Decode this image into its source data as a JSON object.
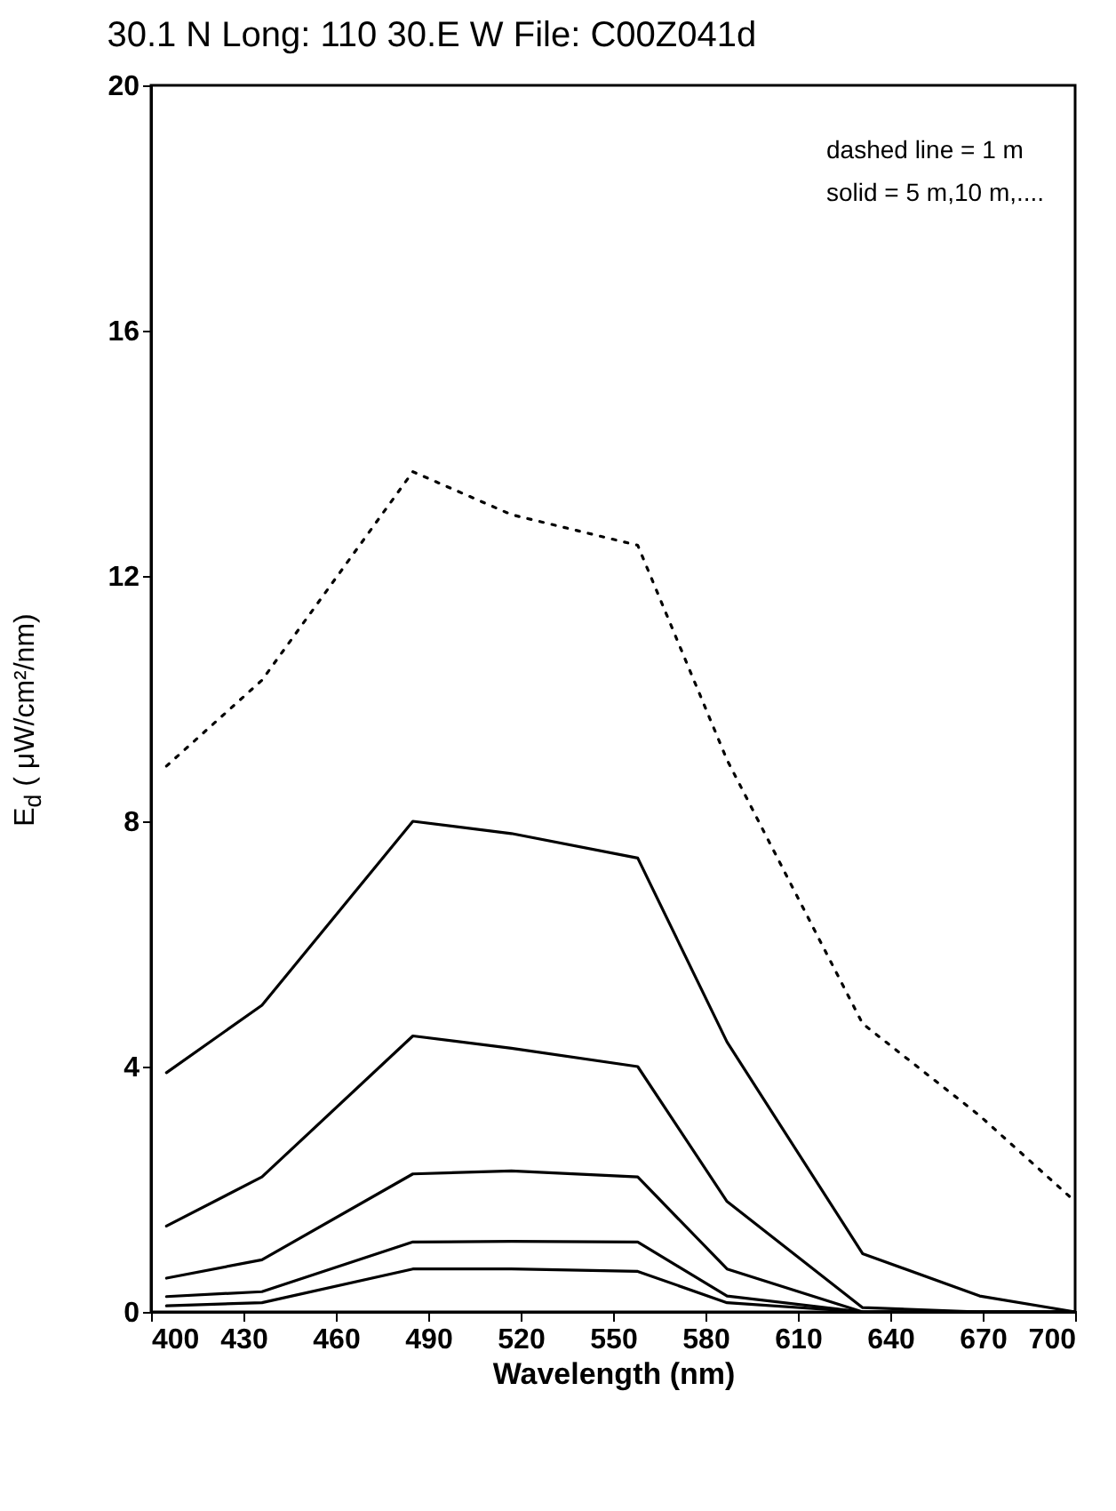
{
  "chart_data": {
    "type": "line",
    "title": "30.1 N Long: 110 30.E W File: C00Z041d",
    "xlabel": "Wavelength (nm)",
    "ylabel": "E$_{d}$ ( μW/cm²/nm)",
    "x": [
      405,
      436,
      485,
      517,
      558,
      587,
      631,
      669,
      700
    ],
    "series": [
      {
        "color": "#000000",
        "line_style": "dotted",
        "values": [
          8.9,
          10.3,
          13.7,
          13.0,
          12.5,
          9.0,
          4.7,
          3.2,
          1.8
        ]
      },
      {
        "color": "#000000",
        "line_style": "solid",
        "values": [
          3.9,
          5.0,
          8.0,
          7.8,
          7.4,
          4.4,
          0.95,
          0.26,
          0
        ]
      },
      {
        "color": "#000000",
        "line_style": "solid",
        "values": [
          1.4,
          2.2,
          4.5,
          4.3,
          4.0,
          1.8,
          0.07,
          0,
          0
        ]
      },
      {
        "color": "#000000",
        "line_style": "solid",
        "values": [
          0.55,
          0.85,
          2.25,
          2.3,
          2.2,
          0.7,
          0,
          0,
          0
        ]
      },
      {
        "color": "#000000",
        "line_style": "solid",
        "values": [
          0.25,
          0.33,
          1.14,
          1.15,
          1.14,
          0.26,
          0,
          0,
          0
        ]
      },
      {
        "color": "#000000",
        "line_style": "solid",
        "values": [
          0.1,
          0.15,
          0.7,
          0.7,
          0.66,
          0.15,
          0,
          0,
          0
        ]
      }
    ],
    "xlim": [
      400,
      700
    ],
    "xticks": [
      400,
      430,
      460,
      490,
      520,
      550,
      580,
      610,
      640,
      670,
      700
    ],
    "ylim": [
      0,
      20
    ],
    "yticks": [
      0,
      4,
      8,
      12,
      16,
      20
    ],
    "grid": false,
    "annotations": [
      "dashed line = 1 m",
      "solid = 5 m,10 m,...."
    ]
  }
}
